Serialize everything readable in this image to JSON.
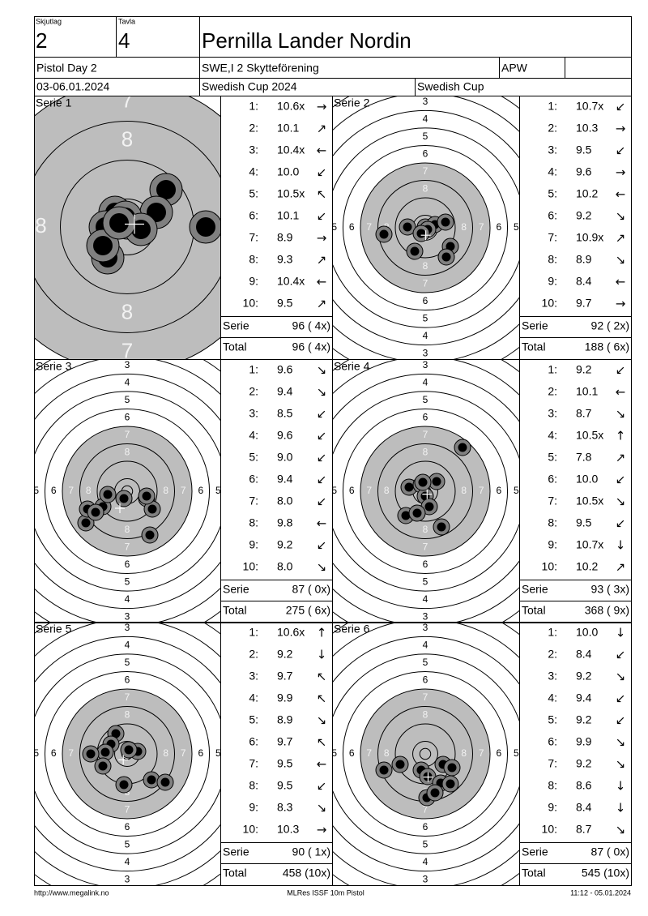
{
  "header": {
    "skjutlag_label": "Skjutlag",
    "skjutlag": "2",
    "tavla_label": "Tavla",
    "tavla": "4",
    "name": "Pernilla Lander Nordin",
    "competition": "Pistol Day 2",
    "club": "SWE,I 2 Skytteförening",
    "class": "APW",
    "date": "03-06.01.2024",
    "cup": "Swedish Cup 2024",
    "cup_short": "Swedish Cup"
  },
  "target": {
    "ring_numbers": [
      "3",
      "4",
      "5",
      "6",
      "7",
      "8"
    ]
  },
  "list_labels": {
    "shot_numbers": [
      "1:",
      "2:",
      "3:",
      "4:",
      "5:",
      "6:",
      "7:",
      "8:",
      "9:",
      "10:"
    ],
    "serie": "Serie",
    "total": "Total"
  },
  "series": [
    {
      "title": "Serie 1",
      "shots": [
        {
          "value": "10.6x",
          "arrow": "→"
        },
        {
          "value": "10.1",
          "arrow": "↗"
        },
        {
          "value": "10.4x",
          "arrow": "←"
        },
        {
          "value": "10.0",
          "arrow": "↙"
        },
        {
          "value": "10.5x",
          "arrow": "↖"
        },
        {
          "value": "10.1",
          "arrow": "↙"
        },
        {
          "value": "8.9",
          "arrow": "→"
        },
        {
          "value": "9.3",
          "arrow": "↗"
        },
        {
          "value": "10.4x",
          "arrow": "←"
        },
        {
          "value": "9.5",
          "arrow": "↗"
        }
      ],
      "serie_score": "96 ( 4x)",
      "total_score": "96 ( 4x)"
    },
    {
      "title": "Serie 2",
      "shots": [
        {
          "value": "10.7x",
          "arrow": "↙"
        },
        {
          "value": "10.3",
          "arrow": "→"
        },
        {
          "value": "9.5",
          "arrow": "↙"
        },
        {
          "value": "9.6",
          "arrow": "→"
        },
        {
          "value": "10.2",
          "arrow": "←"
        },
        {
          "value": "9.2",
          "arrow": "↘"
        },
        {
          "value": "10.9x",
          "arrow": "↗"
        },
        {
          "value": "8.9",
          "arrow": "↘"
        },
        {
          "value": "8.4",
          "arrow": "←"
        },
        {
          "value": "9.7",
          "arrow": "→"
        }
      ],
      "serie_score": "92 ( 2x)",
      "total_score": "188 ( 6x)"
    },
    {
      "title": "Serie 3",
      "shots": [
        {
          "value": "9.6",
          "arrow": "↘"
        },
        {
          "value": "9.4",
          "arrow": "↘"
        },
        {
          "value": "8.5",
          "arrow": "↙"
        },
        {
          "value": "9.6",
          "arrow": "↙"
        },
        {
          "value": "9.0",
          "arrow": "↙"
        },
        {
          "value": "9.4",
          "arrow": "↙"
        },
        {
          "value": "8.0",
          "arrow": "↙"
        },
        {
          "value": "9.8",
          "arrow": "←"
        },
        {
          "value": "9.2",
          "arrow": "↙"
        },
        {
          "value": "8.0",
          "arrow": "↘"
        }
      ],
      "serie_score": "87 ( 0x)",
      "total_score": "275 ( 6x)"
    },
    {
      "title": "Serie 4",
      "shots": [
        {
          "value": "9.2",
          "arrow": "↙"
        },
        {
          "value": "10.1",
          "arrow": "←"
        },
        {
          "value": "8.7",
          "arrow": "↘"
        },
        {
          "value": "10.5x",
          "arrow": "↑"
        },
        {
          "value": "7.8",
          "arrow": "↗"
        },
        {
          "value": "10.0",
          "arrow": "↙"
        },
        {
          "value": "10.5x",
          "arrow": "↘"
        },
        {
          "value": "9.5",
          "arrow": "↙"
        },
        {
          "value": "10.7x",
          "arrow": "↓"
        },
        {
          "value": "10.2",
          "arrow": "↗"
        }
      ],
      "serie_score": "93 ( 3x)",
      "total_score": "368 ( 9x)"
    },
    {
      "title": "Serie 5",
      "shots": [
        {
          "value": "10.6x",
          "arrow": "↑"
        },
        {
          "value": "9.2",
          "arrow": "↓"
        },
        {
          "value": "9.7",
          "arrow": "↖"
        },
        {
          "value": "9.9",
          "arrow": "↖"
        },
        {
          "value": "8.9",
          "arrow": "↘"
        },
        {
          "value": "9.7",
          "arrow": "↖"
        },
        {
          "value": "9.5",
          "arrow": "←"
        },
        {
          "value": "9.5",
          "arrow": "↙"
        },
        {
          "value": "8.3",
          "arrow": "↘"
        },
        {
          "value": "10.3",
          "arrow": "→"
        }
      ],
      "serie_score": "90 ( 1x)",
      "total_score": "458 (10x)"
    },
    {
      "title": "Serie 6",
      "shots": [
        {
          "value": "10.0",
          "arrow": "↓"
        },
        {
          "value": "8.4",
          "arrow": "↙"
        },
        {
          "value": "9.2",
          "arrow": "↘"
        },
        {
          "value": "9.4",
          "arrow": "↙"
        },
        {
          "value": "9.2",
          "arrow": "↙"
        },
        {
          "value": "9.9",
          "arrow": "↘"
        },
        {
          "value": "9.2",
          "arrow": "↘"
        },
        {
          "value": "8.6",
          "arrow": "↓"
        },
        {
          "value": "8.4",
          "arrow": "↓"
        },
        {
          "value": "8.7",
          "arrow": "↘"
        }
      ],
      "serie_score": "87 ( 0x)",
      "total_score": "545 (10x)"
    }
  ],
  "footer": {
    "url": "http://www.megalink.no",
    "program": "MLRes ISSF 10m Pistol",
    "timestamp": "11:12 - 05.01.2024"
  }
}
